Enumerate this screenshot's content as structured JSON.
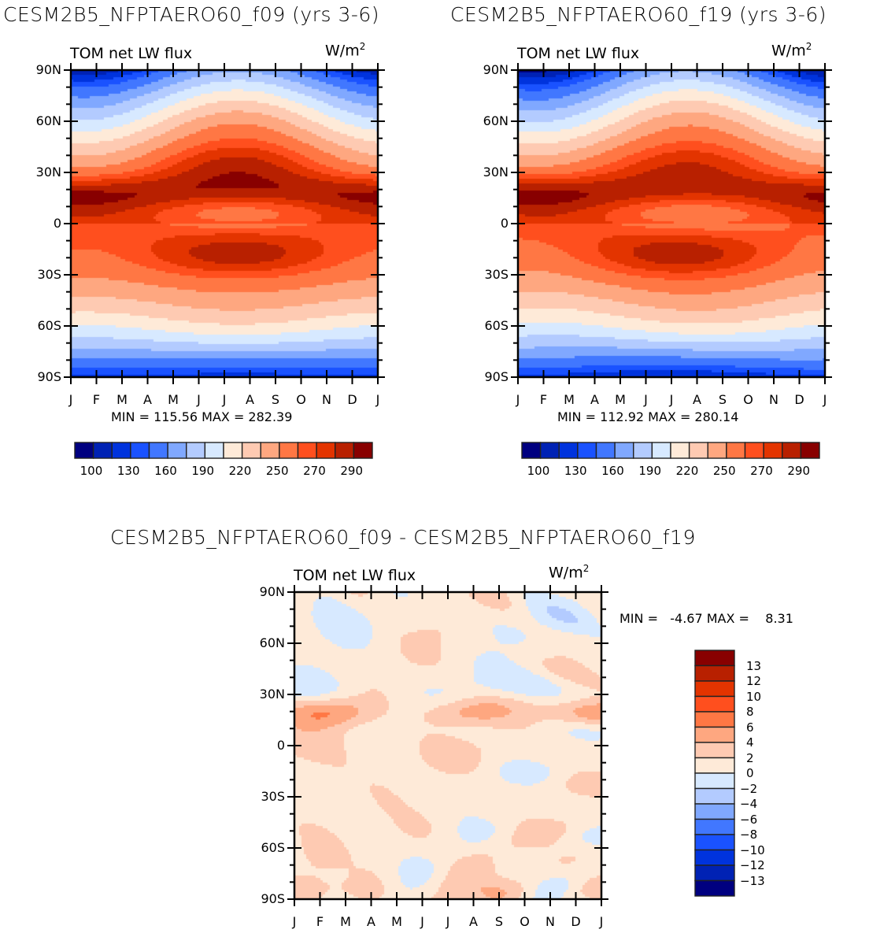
{
  "palette": [
    "#000080",
    "#0022b4",
    "#0033dd",
    "#1a52ff",
    "#4177ff",
    "#80a8ff",
    "#b3cbff",
    "#d7e9ff",
    "#feead8",
    "#fecab2",
    "#fea780",
    "#ff7744",
    "#ff4f1e",
    "#e33400",
    "#b82000",
    "#880000"
  ],
  "chart_data": [
    {
      "type": "heatmap",
      "title": "CESM2B5_NFPTAERO60_f09 (yrs 3-6)",
      "variable": "TOM net LW flux",
      "units_label": "W/m",
      "units_sup": "2",
      "xlabels": [
        "J",
        "F",
        "M",
        "A",
        "M",
        "J",
        "J",
        "A",
        "S",
        "O",
        "N",
        "D",
        "J"
      ],
      "ylabels": [
        "90N",
        "60N",
        "30N",
        "0",
        "30S",
        "60S",
        "90S"
      ],
      "x": "month (Jan-Jan)",
      "ylim": [
        -90,
        90
      ],
      "min_label": "MIN = 115.56 MAX = 282.39",
      "min": 115.56,
      "max": 282.39,
      "levels": [
        100,
        110,
        120,
        130,
        145,
        160,
        175,
        190,
        205,
        220,
        235,
        250,
        260,
        270,
        280,
        290
      ],
      "colorbar_labels": [
        "100",
        "130",
        "160",
        "190",
        "220",
        "250",
        "270",
        "290"
      ],
      "field": "seasonal_lw_f09"
    },
    {
      "type": "heatmap",
      "title": "CESM2B5_NFPTAERO60_f19 (yrs 3-6)",
      "variable": "TOM net LW flux",
      "units_label": "W/m",
      "units_sup": "2",
      "xlabels": [
        "J",
        "F",
        "M",
        "A",
        "M",
        "J",
        "J",
        "A",
        "S",
        "O",
        "N",
        "D",
        "J"
      ],
      "ylabels": [
        "90N",
        "60N",
        "30N",
        "0",
        "30S",
        "60S",
        "90S"
      ],
      "ylim": [
        -90,
        90
      ],
      "min_label": "MIN = 112.92 MAX = 280.14",
      "min": 112.92,
      "max": 280.14,
      "levels": [
        100,
        110,
        120,
        130,
        145,
        160,
        175,
        190,
        205,
        220,
        235,
        250,
        260,
        270,
        280,
        290
      ],
      "colorbar_labels": [
        "100",
        "130",
        "160",
        "190",
        "220",
        "250",
        "270",
        "290"
      ],
      "field": "seasonal_lw_f19"
    },
    {
      "type": "heatmap",
      "title": "CESM2B5_NFPTAERO60_f09 - CESM2B5_NFPTAERO60_f19",
      "variable": "TOM net LW flux",
      "units_label": "W/m",
      "units_sup": "2",
      "xlabels": [
        "J",
        "F",
        "M",
        "A",
        "M",
        "J",
        "J",
        "A",
        "S",
        "O",
        "N",
        "D",
        "J"
      ],
      "ylabels": [
        "90N",
        "60N",
        "30N",
        "0",
        "30S",
        "60S",
        "90S"
      ],
      "ylim": [
        -90,
        90
      ],
      "min_label": "MIN =   -4.67 MAX =    8.31",
      "min": -4.67,
      "max": 8.31,
      "levels": [
        -13,
        -12,
        -10,
        -8,
        -6,
        -4,
        -2,
        0,
        2,
        4,
        6,
        8,
        10,
        12,
        13
      ],
      "colorbar_labels": [
        "13",
        "12",
        "10",
        "8",
        "6",
        "4",
        "2",
        "0",
        "-2",
        "-4",
        "-6",
        "-8",
        "-10",
        "-12",
        "-13"
      ],
      "field": "difference"
    }
  ]
}
